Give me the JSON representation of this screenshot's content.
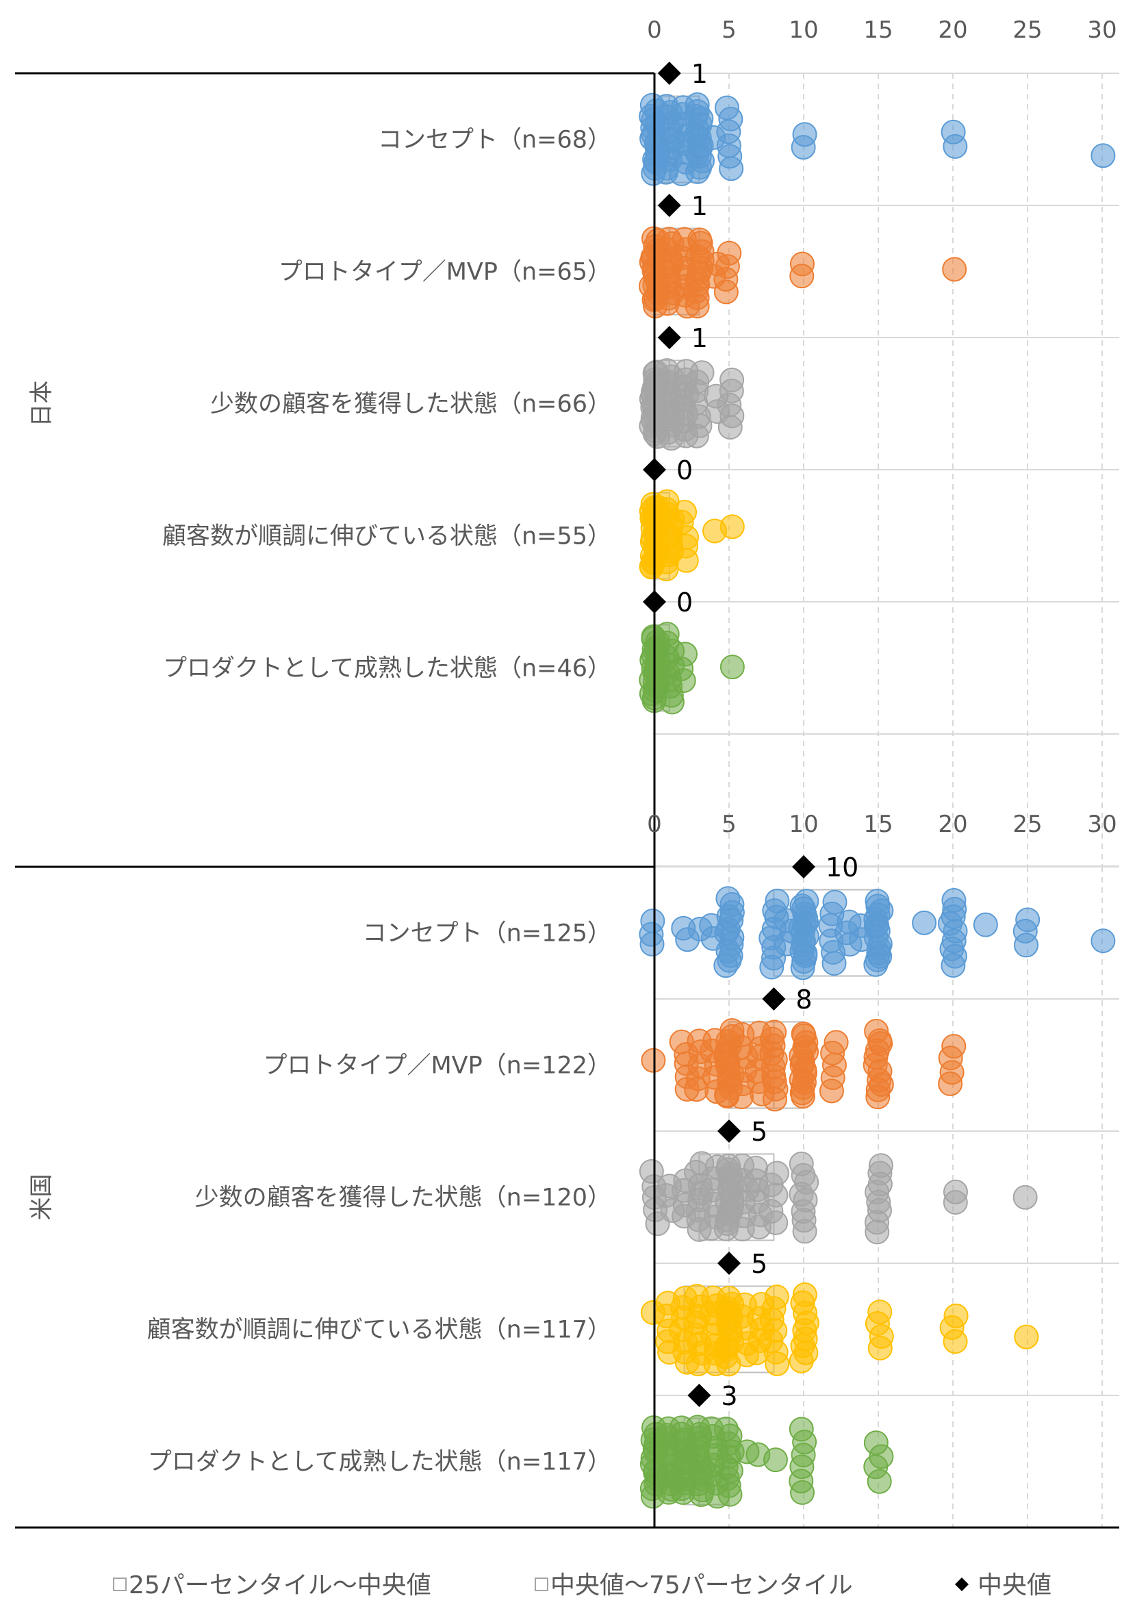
{
  "chart_data": [
    {
      "type": "scatter",
      "group": "日本",
      "x_ticks": [
        0,
        5,
        10,
        15,
        20,
        25,
        30
      ],
      "xlim": [
        0,
        30
      ],
      "grid": "vertical dashed + horizontal row separators",
      "categories": [
        {
          "label": "コンセプト（n=68）",
          "color": "#5b9bd5",
          "median": 1,
          "median_label": "1",
          "q1": 0,
          "q3": 3,
          "points": [
            0,
            0,
            0,
            0,
            0,
            0,
            0,
            0,
            0,
            0,
            0,
            0,
            0,
            0,
            0,
            0,
            1,
            1,
            1,
            1,
            1,
            1,
            1,
            1,
            1,
            1,
            1,
            1,
            2,
            2,
            2,
            2,
            2,
            2,
            2,
            2,
            3,
            3,
            3,
            3,
            3,
            3,
            3,
            3,
            3,
            3,
            3,
            3,
            3,
            3,
            3,
            4,
            5,
            5,
            5,
            5,
            5,
            5,
            10,
            10,
            20,
            20,
            30
          ]
        },
        {
          "label": "プロトタイプ／MVP（n=65）",
          "color": "#ed7d31",
          "median": 1,
          "median_label": "1",
          "q1": 0,
          "q3": 3,
          "points": [
            0,
            0,
            0,
            0,
            0,
            0,
            0,
            0,
            0,
            0,
            0,
            0,
            0,
            0,
            0,
            0,
            0,
            1,
            1,
            1,
            1,
            1,
            1,
            1,
            1,
            1,
            1,
            1,
            1,
            2,
            2,
            2,
            2,
            2,
            2,
            2,
            2,
            3,
            3,
            3,
            3,
            3,
            3,
            3,
            3,
            3,
            3,
            3,
            3,
            4,
            4,
            5,
            5,
            5,
            5,
            10,
            10,
            20
          ]
        },
        {
          "label": "少数の顧客を獲得した状態（n=66）",
          "color": "#a5a5a5",
          "median": 1,
          "median_label": "1",
          "q1": 0,
          "q3": 2,
          "points": [
            0,
            0,
            0,
            0,
            0,
            0,
            0,
            0,
            0,
            0,
            0,
            0,
            0,
            0,
            0,
            0,
            0,
            0,
            0,
            1,
            1,
            1,
            1,
            1,
            1,
            1,
            1,
            1,
            1,
            1,
            1,
            1,
            1,
            2,
            2,
            2,
            2,
            2,
            2,
            2,
            2,
            2,
            2,
            3,
            3,
            3,
            3,
            3,
            3,
            3,
            4,
            4,
            5,
            5,
            5,
            5,
            5
          ]
        },
        {
          "label": "顧客数が順調に伸びている状態（n=55）",
          "color": "#ffc000",
          "median": 0,
          "median_label": "0",
          "q1": 0,
          "q3": 1,
          "points": [
            0,
            0,
            0,
            0,
            0,
            0,
            0,
            0,
            0,
            0,
            0,
            0,
            0,
            0,
            0,
            0,
            0,
            0,
            0,
            0,
            0,
            0,
            0,
            1,
            1,
            1,
            1,
            1,
            1,
            1,
            1,
            1,
            1,
            1,
            1,
            2,
            2,
            2,
            2,
            2,
            4,
            5
          ]
        },
        {
          "label": "プロダクトとして成熟した状態（n=46）",
          "color": "#70ad47",
          "median": 0,
          "median_label": "0",
          "q1": 0,
          "q3": 1,
          "points": [
            0,
            0,
            0,
            0,
            0,
            0,
            0,
            0,
            0,
            0,
            0,
            0,
            0,
            0,
            0,
            0,
            0,
            0,
            0,
            0,
            0,
            1,
            1,
            1,
            1,
            1,
            1,
            1,
            1,
            1,
            1,
            2,
            2,
            2,
            5
          ]
        }
      ]
    },
    {
      "type": "scatter",
      "group": "米国",
      "x_ticks": [
        0,
        5,
        10,
        15,
        20,
        25,
        30
      ],
      "xlim": [
        0,
        30
      ],
      "grid": "vertical dashed + horizontal row separators",
      "categories": [
        {
          "label": "コンセプト（n=125）",
          "color": "#5b9bd5",
          "median": 10,
          "median_label": "10",
          "q1": 8,
          "q3": 15,
          "points": [
            0,
            0,
            0,
            2,
            2,
            3,
            4,
            4,
            5,
            5,
            5,
            5,
            5,
            5,
            5,
            5,
            5,
            5,
            5,
            5,
            5,
            8,
            8,
            8,
            8,
            8,
            8,
            8,
            8,
            9,
            9,
            9,
            10,
            10,
            10,
            10,
            10,
            10,
            10,
            10,
            10,
            10,
            10,
            10,
            10,
            10,
            10,
            10,
            10,
            12,
            12,
            12,
            12,
            12,
            12,
            13,
            13,
            13,
            14,
            14,
            15,
            15,
            15,
            15,
            15,
            15,
            15,
            15,
            15,
            15,
            15,
            15,
            15,
            15,
            15,
            18,
            20,
            20,
            20,
            20,
            20,
            20,
            20,
            20,
            20,
            22,
            25,
            25,
            25,
            30
          ]
        },
        {
          "label": "プロトタイプ／MVP（n=122）",
          "color": "#ed7d31",
          "median": 8,
          "median_label": "8",
          "q1": 5,
          "q3": 10,
          "points": [
            0,
            2,
            2,
            2,
            2,
            2,
            3,
            3,
            3,
            3,
            3,
            4,
            4,
            4,
            4,
            4,
            5,
            5,
            5,
            5,
            5,
            5,
            5,
            5,
            5,
            5,
            5,
            5,
            5,
            5,
            5,
            6,
            6,
            6,
            6,
            6,
            6,
            7,
            7,
            7,
            7,
            7,
            7,
            8,
            8,
            8,
            8,
            8,
            8,
            8,
            8,
            8,
            8,
            10,
            10,
            10,
            10,
            10,
            10,
            10,
            10,
            10,
            10,
            10,
            10,
            10,
            10,
            10,
            12,
            12,
            12,
            12,
            12,
            15,
            15,
            15,
            15,
            15,
            15,
            15,
            15,
            15,
            15,
            15,
            20,
            20,
            20,
            20
          ]
        },
        {
          "label": "少数の顧客を獲得した状態（n=120）",
          "color": "#a5a5a5",
          "median": 5,
          "median_label": "5",
          "q1": 3,
          "q3": 8,
          "points": [
            0,
            0,
            0,
            0,
            0,
            1,
            1,
            1,
            2,
            2,
            2,
            2,
            3,
            3,
            3,
            3,
            3,
            3,
            3,
            3,
            4,
            4,
            4,
            4,
            4,
            4,
            5,
            5,
            5,
            5,
            5,
            5,
            5,
            5,
            5,
            5,
            5,
            5,
            5,
            5,
            5,
            6,
            6,
            6,
            6,
            6,
            6,
            7,
            7,
            7,
            7,
            7,
            7,
            8,
            8,
            8,
            8,
            8,
            10,
            10,
            10,
            10,
            10,
            10,
            10,
            10,
            15,
            15,
            15,
            15,
            15,
            15,
            15,
            15,
            20,
            20,
            25
          ]
        },
        {
          "label": "顧客数が順調に伸びている状態（n=117）",
          "color": "#ffc000",
          "median": 5,
          "median_label": "5",
          "q1": 2,
          "q3": 8,
          "points": [
            0,
            1,
            1,
            1,
            1,
            1,
            2,
            2,
            2,
            2,
            2,
            2,
            2,
            3,
            3,
            3,
            3,
            3,
            3,
            3,
            3,
            4,
            4,
            4,
            4,
            4,
            4,
            4,
            4,
            5,
            5,
            5,
            5,
            5,
            5,
            5,
            5,
            5,
            5,
            5,
            5,
            5,
            6,
            6,
            6,
            6,
            6,
            7,
            7,
            7,
            7,
            7,
            8,
            8,
            8,
            8,
            8,
            8,
            8,
            10,
            10,
            10,
            10,
            10,
            10,
            10,
            10,
            10,
            15,
            15,
            15,
            15,
            20,
            20,
            20,
            25
          ]
        },
        {
          "label": "プロダクトとして成熟した状態（n=117）",
          "color": "#70ad47",
          "median": 3,
          "median_label": "3",
          "q1": 2,
          "q3": 5,
          "points": [
            0,
            0,
            0,
            0,
            0,
            0,
            0,
            0,
            0,
            0,
            0,
            0,
            0,
            0,
            1,
            1,
            1,
            1,
            1,
            1,
            1,
            1,
            1,
            1,
            1,
            1,
            1,
            2,
            2,
            2,
            2,
            2,
            2,
            2,
            2,
            2,
            2,
            2,
            2,
            2,
            2,
            3,
            3,
            3,
            3,
            3,
            3,
            3,
            3,
            3,
            3,
            3,
            3,
            3,
            4,
            4,
            4,
            4,
            4,
            4,
            4,
            4,
            5,
            5,
            5,
            5,
            5,
            5,
            5,
            5,
            5,
            5,
            6,
            7,
            8,
            10,
            10,
            10,
            10,
            10,
            10,
            15,
            15,
            15,
            15
          ]
        }
      ]
    }
  ],
  "legend": {
    "items": [
      {
        "label": "25パーセンタイル～中央値",
        "marker": "box"
      },
      {
        "label": "中央値～75パーセンタイル",
        "marker": "box"
      },
      {
        "label": "中央値",
        "marker": "diamond"
      }
    ]
  }
}
